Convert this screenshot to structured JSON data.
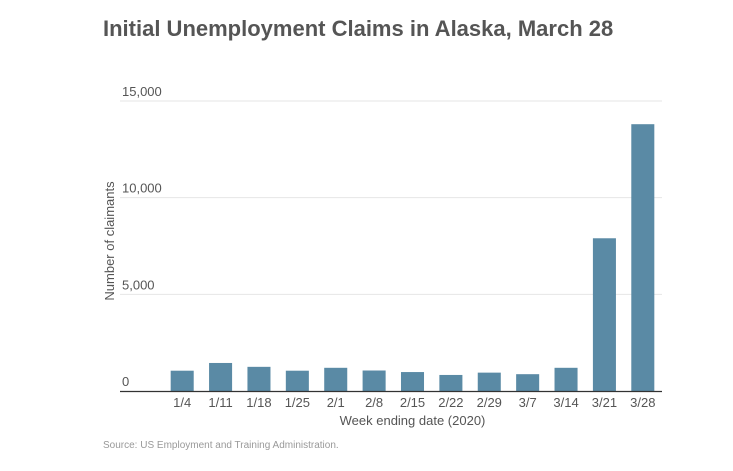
{
  "source_note": "Source: US Employment and Training Administration.",
  "colors": {
    "bar": "#5a8aa5",
    "grid": "#e6e6e6",
    "axis": "#333333",
    "text": "#555555",
    "title": "#555555",
    "source": "#999999"
  },
  "chart_data": {
    "type": "bar",
    "title": "Initial Unemployment Claims in Alaska, March 28",
    "xlabel": "Week ending date (2020)",
    "ylabel": "Number of claimants",
    "categories": [
      "1/4",
      "1/11",
      "1/18",
      "1/25",
      "2/1",
      "2/8",
      "2/15",
      "2/22",
      "2/29",
      "3/7",
      "3/14",
      "3/21",
      "3/28"
    ],
    "values": [
      1050,
      1450,
      1250,
      1050,
      1200,
      1060,
      980,
      830,
      950,
      870,
      1200,
      7900,
      13800
    ],
    "ylim": [
      0,
      15000
    ],
    "yticks": [
      0,
      5000,
      10000,
      15000
    ],
    "ytick_labels": [
      "0",
      "5,000",
      "10,000",
      "15,000"
    ],
    "grid": true,
    "legend": "none"
  }
}
